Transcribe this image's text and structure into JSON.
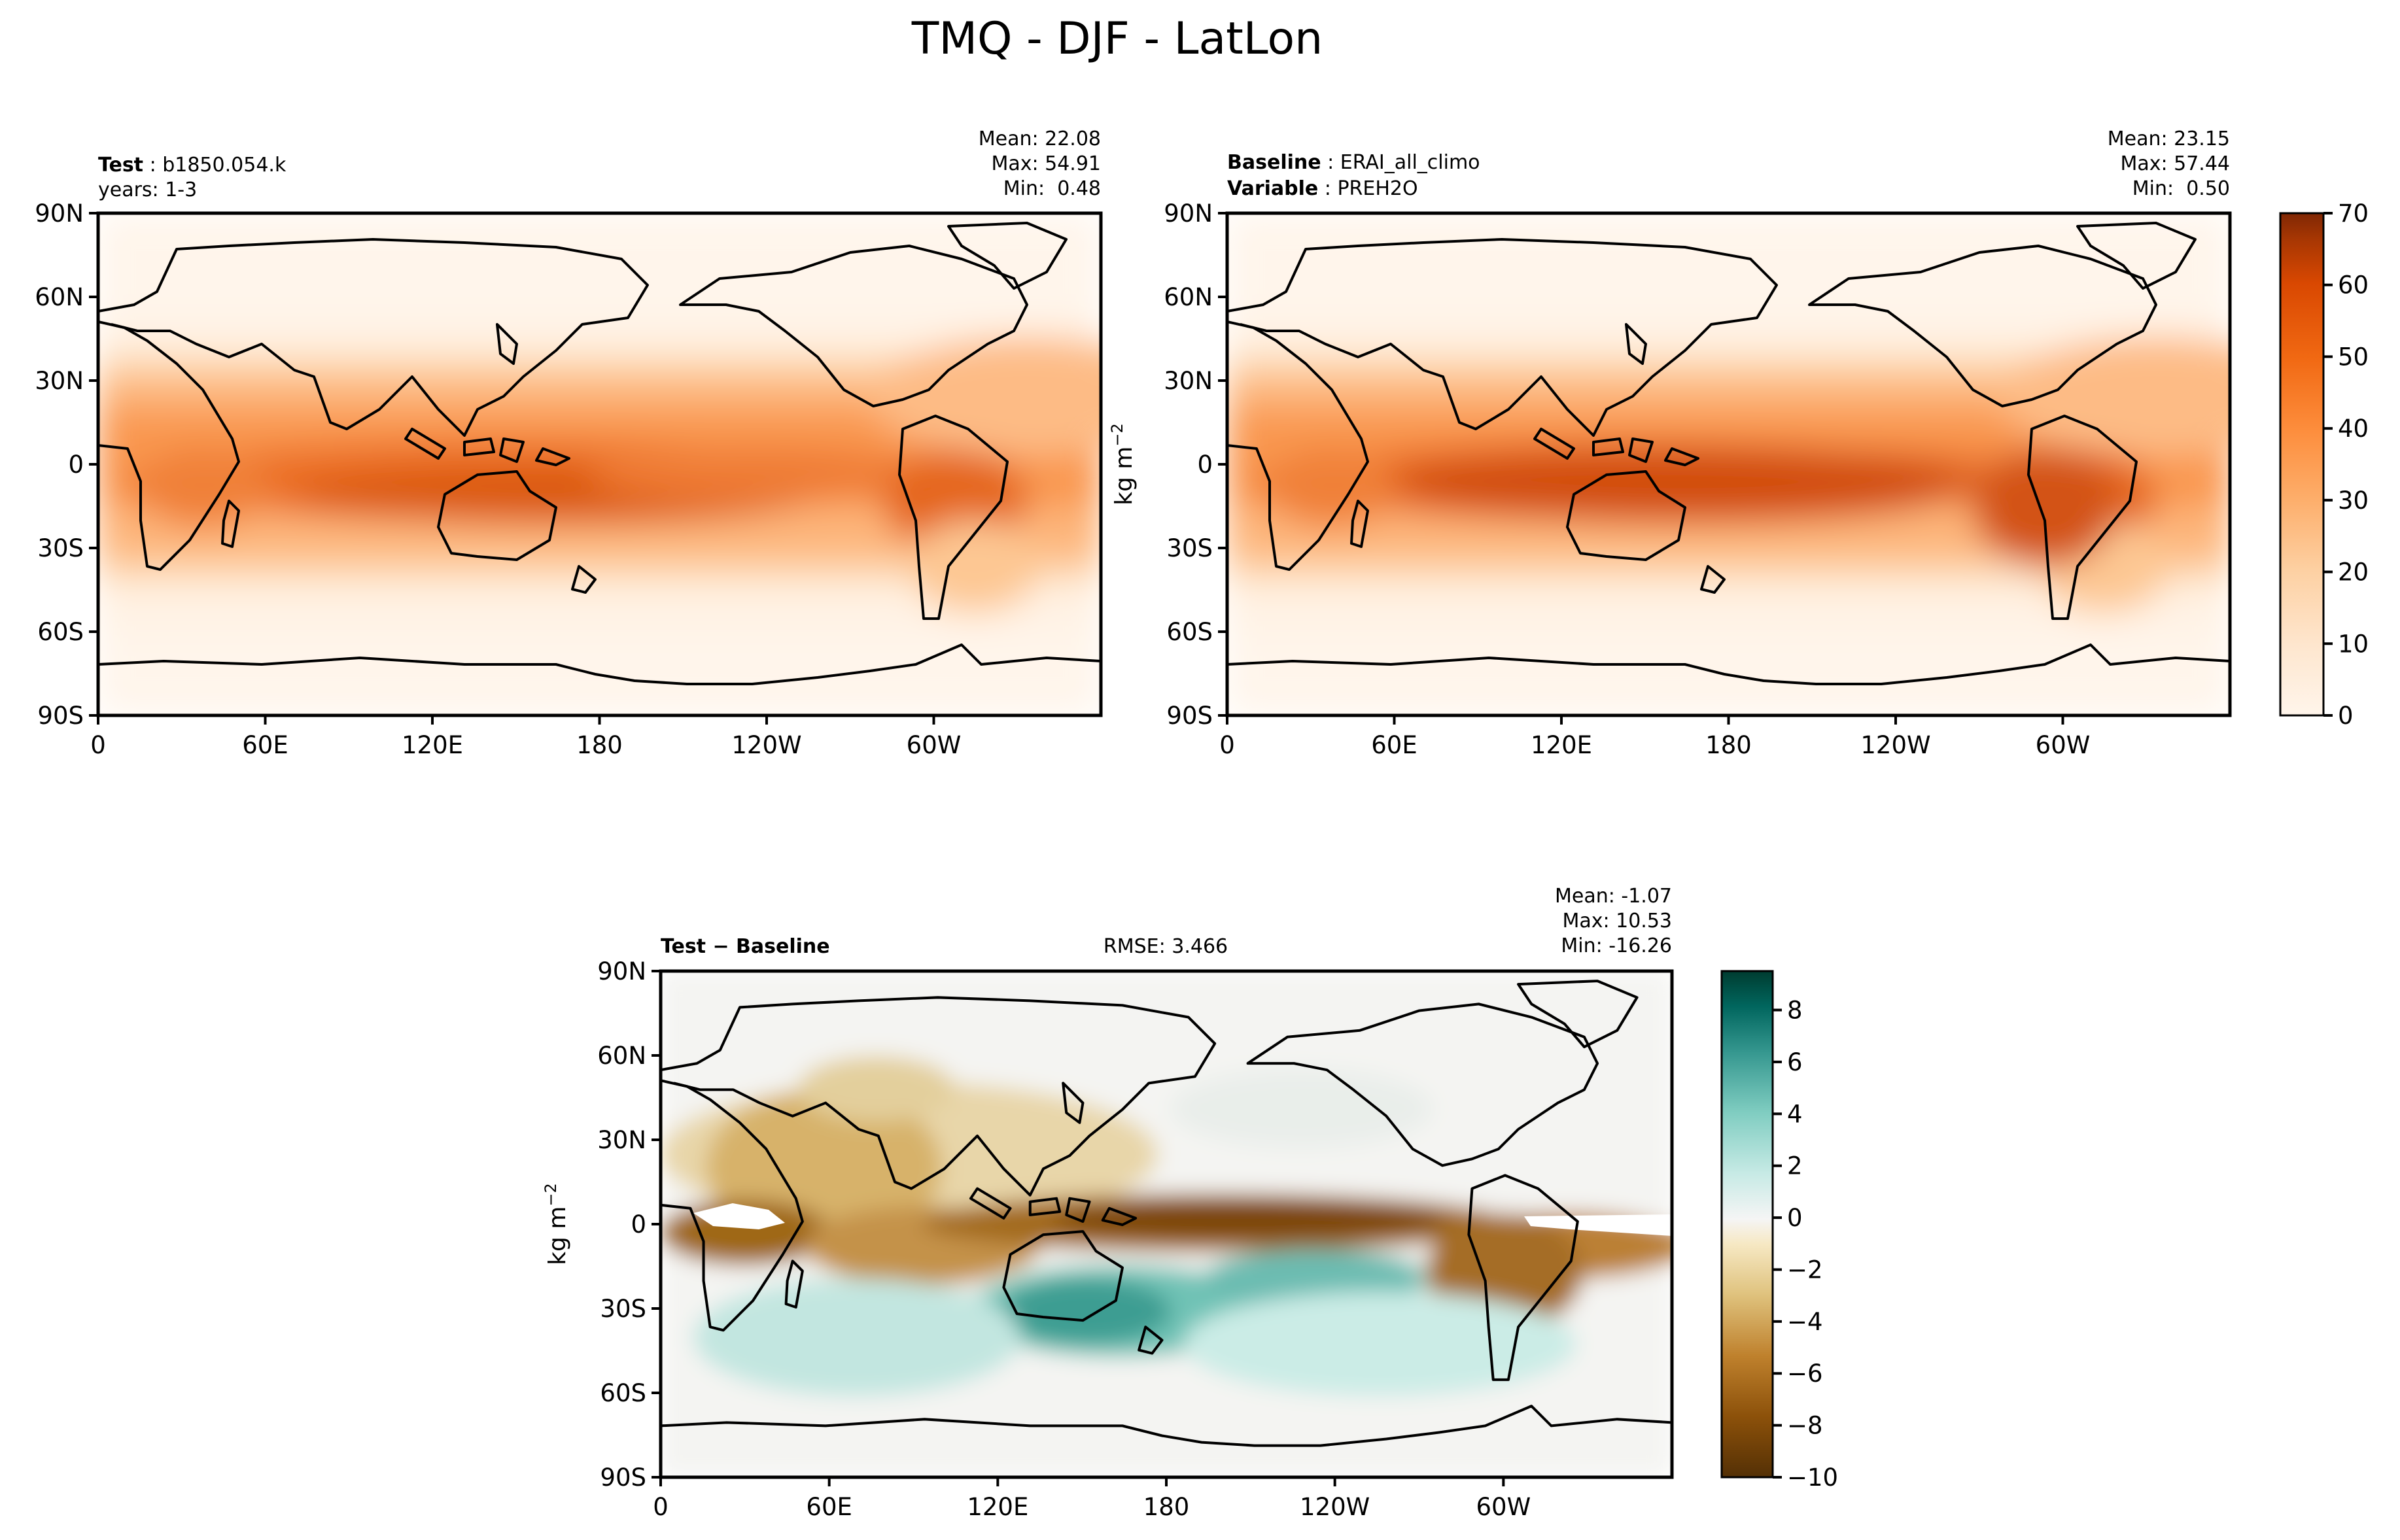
{
  "figure": {
    "title": "TMQ - DJF - LatLon"
  },
  "chart_data": [
    {
      "type": "heatmap",
      "panel": "test",
      "title_left_bold": "Test",
      "title_left_value": "b1850.054.k",
      "title_left_line2": "years: 1-3",
      "stats": [
        "Mean: 22.08",
        "Max: 54.91",
        "Min:  0.48"
      ],
      "xticks": [
        "0",
        "60E",
        "120E",
        "180",
        "120W",
        "60W"
      ],
      "yticks": [
        "90N",
        "60N",
        "30N",
        "0",
        "30S",
        "60S",
        "90S"
      ],
      "colormap": [
        "#fff5eb",
        "#fee6ce",
        "#fdd0a2",
        "#fdae6b",
        "#fd8d3c",
        "#f16913",
        "#d94801",
        "#a63603",
        "#7f2704"
      ]
    },
    {
      "type": "heatmap",
      "panel": "baseline",
      "title_left_bold": "Baseline",
      "title_left_value": "ERAI_all_climo",
      "title_left_bold2": "Variable",
      "title_left_value2": "PREH2O",
      "stats": [
        "Mean: 23.15",
        "Max: 57.44",
        "Min:  0.50"
      ],
      "xticks": [
        "0",
        "60E",
        "120E",
        "180",
        "120W",
        "60W"
      ],
      "yticks": [
        "90N",
        "60N",
        "30N",
        "0",
        "30S",
        "60S",
        "90S"
      ],
      "ylabel": "kg m",
      "ylabel_sup": "−2",
      "colorbar": {
        "ticks": [
          "70",
          "60",
          "50",
          "40",
          "30",
          "20",
          "10",
          "0"
        ],
        "range": [
          0,
          70
        ]
      }
    },
    {
      "type": "heatmap",
      "panel": "difference",
      "title_left_bold": "Test − Baseline",
      "title_center": "RMSE: 3.466",
      "stats": [
        "Mean: -1.07",
        "Max: 10.53",
        "Min: -16.26"
      ],
      "xticks": [
        "0",
        "60E",
        "120E",
        "180",
        "120W",
        "60W"
      ],
      "yticks": [
        "90N",
        "60N",
        "30N",
        "0",
        "30S",
        "60S",
        "90S"
      ],
      "ylabel": "kg m",
      "ylabel_sup": "−2",
      "colorbar": {
        "ticks": [
          "8",
          "6",
          "4",
          "2",
          "0",
          "−2",
          "−4",
          "−6",
          "−8",
          "−10"
        ],
        "range": [
          -10,
          9.5
        ]
      },
      "colormap": [
        "#543005",
        "#8c510a",
        "#bf812d",
        "#dfc27d",
        "#f6e8c3",
        "#f5f5f5",
        "#c7eae5",
        "#80cdc1",
        "#35978f",
        "#01665e",
        "#003c30"
      ]
    }
  ]
}
